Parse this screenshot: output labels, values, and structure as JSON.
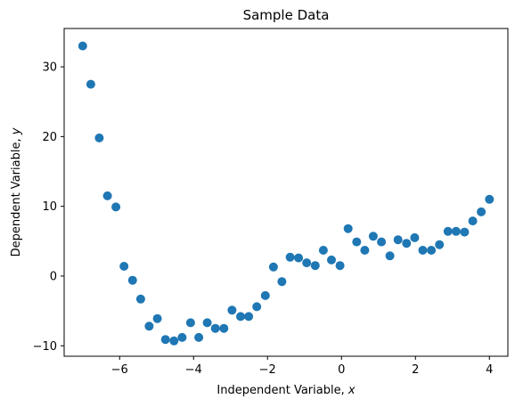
{
  "chart_data": {
    "type": "scatter",
    "title": "Sample Data",
    "xlabel": "Independent Variable, ",
    "xlabel_var": "x",
    "ylabel": "Dependent Variable, ",
    "ylabel_var": "y",
    "xlim": [
      -7.5,
      4.5
    ],
    "ylim": [
      -11.5,
      35.5
    ],
    "xticks": [
      -6,
      -4,
      -2,
      0,
      2,
      4
    ],
    "xtick_labels": [
      "−6",
      "−4",
      "−2",
      "0",
      "2",
      "4"
    ],
    "yticks": [
      -10,
      0,
      10,
      20,
      30
    ],
    "ytick_labels": [
      "−10",
      "0",
      "10",
      "20",
      "30"
    ],
    "grid": false,
    "marker_color": "#1f77b4",
    "series": [
      {
        "points": [
          [
            -7.0,
            33.0
          ],
          [
            -6.78,
            27.5
          ],
          [
            -6.55,
            19.8
          ],
          [
            -6.33,
            11.5
          ],
          [
            -6.1,
            9.9
          ],
          [
            -5.88,
            1.4
          ],
          [
            -5.65,
            -0.6
          ],
          [
            -5.43,
            -3.3
          ],
          [
            -5.2,
            -7.2
          ],
          [
            -4.98,
            -6.1
          ],
          [
            -4.76,
            -9.1
          ],
          [
            -4.53,
            -9.3
          ],
          [
            -4.31,
            -8.8
          ],
          [
            -4.08,
            -6.7
          ],
          [
            -3.86,
            -8.8
          ],
          [
            -3.63,
            -6.7
          ],
          [
            -3.41,
            -7.5
          ],
          [
            -3.18,
            -7.5
          ],
          [
            -2.96,
            -4.9
          ],
          [
            -2.73,
            -5.8
          ],
          [
            -2.51,
            -5.8
          ],
          [
            -2.29,
            -4.4
          ],
          [
            -2.06,
            -2.8
          ],
          [
            -1.84,
            1.3
          ],
          [
            -1.61,
            -0.8
          ],
          [
            -1.39,
            2.7
          ],
          [
            -1.16,
            2.6
          ],
          [
            -0.94,
            1.9
          ],
          [
            -0.71,
            1.5
          ],
          [
            -0.49,
            3.7
          ],
          [
            -0.27,
            2.3
          ],
          [
            -0.04,
            1.5
          ],
          [
            0.18,
            6.8
          ],
          [
            0.41,
            4.9
          ],
          [
            0.63,
            3.7
          ],
          [
            0.86,
            5.7
          ],
          [
            1.08,
            4.9
          ],
          [
            1.31,
            2.9
          ],
          [
            1.53,
            5.2
          ],
          [
            1.76,
            4.7
          ],
          [
            1.98,
            5.5
          ],
          [
            2.2,
            3.7
          ],
          [
            2.43,
            3.7
          ],
          [
            2.65,
            4.5
          ],
          [
            2.88,
            6.4
          ],
          [
            3.1,
            6.4
          ],
          [
            3.33,
            6.3
          ],
          [
            3.55,
            7.9
          ],
          [
            3.78,
            9.2
          ],
          [
            4.0,
            11.0
          ]
        ]
      }
    ]
  }
}
